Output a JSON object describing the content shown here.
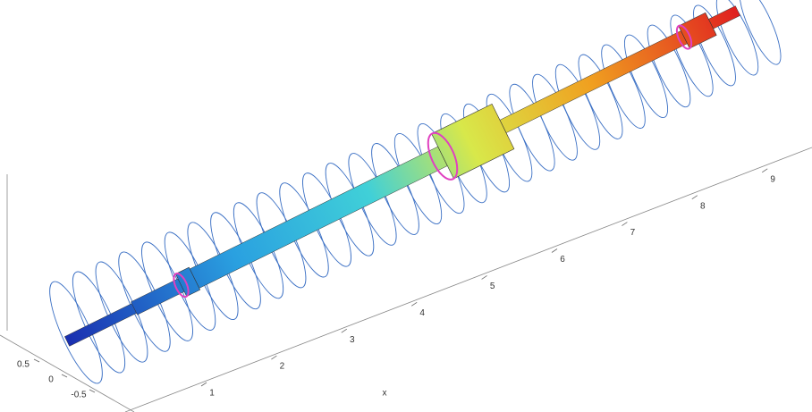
{
  "axes": {
    "x_ticks": [
      1,
      2,
      3,
      4,
      5,
      6,
      7,
      8,
      9
    ],
    "y_ticks": [
      0.5,
      0,
      -0.5
    ],
    "x_label": "x"
  }
}
